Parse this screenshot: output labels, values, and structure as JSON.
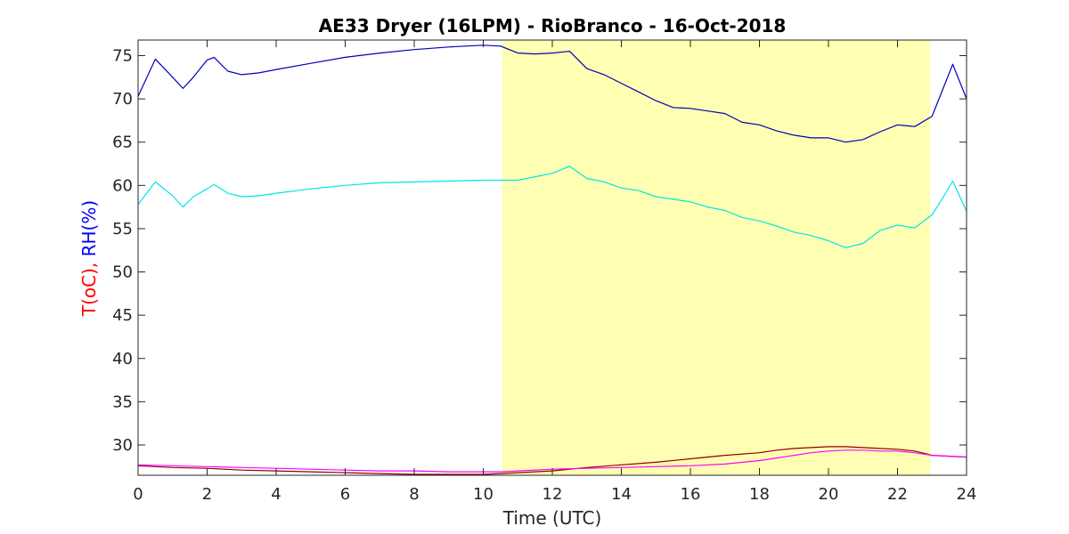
{
  "chart_data": {
    "type": "line",
    "title": "AE33 Dryer (16LPM)  - RioBranco - 16-Oct-2018",
    "xlabel": "Time (UTC)",
    "ylabel_parts": [
      {
        "text": "T(oC),",
        "color": "#ff0000"
      },
      {
        "text": " RH(%)",
        "color": "#0000ff"
      }
    ],
    "xlim": [
      0,
      24
    ],
    "ylim": [
      26.5,
      76.8
    ],
    "xticks": [
      0,
      2,
      4,
      6,
      8,
      10,
      12,
      14,
      16,
      18,
      20,
      22,
      24
    ],
    "yticks": [
      30,
      35,
      40,
      45,
      50,
      55,
      60,
      65,
      70,
      75
    ],
    "shaded_region": {
      "x0": 10.55,
      "x1": 22.95,
      "color": "#ffffb3"
    },
    "grid": false,
    "series": [
      {
        "color": "#0000b4",
        "x": [
          0,
          0.5,
          1,
          1.3,
          1.6,
          2,
          2.2,
          2.6,
          3,
          3.5,
          4,
          5,
          6,
          7,
          8,
          9,
          10,
          10.5,
          11,
          11.5,
          12,
          12.5,
          13,
          13.5,
          14,
          14.5,
          15,
          15.5,
          16,
          16.5,
          17,
          17.5,
          18,
          18.5,
          19,
          19.5,
          20,
          20.5,
          21,
          21.5,
          22,
          22.5,
          23,
          23.3,
          23.6,
          24
        ],
        "y": [
          70.3,
          74.6,
          72.5,
          71.2,
          72.5,
          74.5,
          74.8,
          73.2,
          72.8,
          73,
          73.4,
          74.1,
          74.8,
          75.3,
          75.7,
          76,
          76.2,
          76.1,
          75.3,
          75.2,
          75.3,
          75.5,
          73.5,
          72.8,
          71.8,
          70.8,
          69.8,
          69,
          68.9,
          68.6,
          68.3,
          67.3,
          67,
          66.3,
          65.8,
          65.5,
          65.5,
          65,
          65.3,
          66.2,
          67,
          66.8,
          68,
          71,
          74,
          70
        ]
      },
      {
        "color": "#00e5e5",
        "x": [
          0,
          0.5,
          1,
          1.3,
          1.6,
          2,
          2.2,
          2.6,
          3,
          3.5,
          4,
          5,
          6,
          7,
          8,
          9,
          10,
          10.5,
          11,
          11.5,
          12,
          12.5,
          13,
          13.5,
          14,
          14.5,
          15,
          15.5,
          16,
          16.5,
          17,
          17.5,
          18,
          18.5,
          19,
          19.5,
          20,
          20.5,
          21,
          21.5,
          22,
          22.5,
          23,
          23.3,
          23.6,
          24
        ],
        "y": [
          57.8,
          60.4,
          58.8,
          57.5,
          58.7,
          59.6,
          60.1,
          59.1,
          58.7,
          58.8,
          59.1,
          59.6,
          60,
          60.3,
          60.4,
          60.5,
          60.6,
          60.6,
          60.6,
          61,
          61.4,
          62.2,
          60.8,
          60.4,
          59.7,
          59.4,
          58.7,
          58.4,
          58.1,
          57.5,
          57.1,
          56.3,
          55.9,
          55.3,
          54.6,
          54.2,
          53.6,
          52.8,
          53.3,
          54.8,
          55.4,
          55.1,
          56.6,
          58.5,
          60.5,
          57
        ]
      },
      {
        "color": "#8b0000",
        "x": [
          0,
          1,
          2,
          3,
          4,
          5,
          6,
          7,
          8,
          9,
          10,
          10.5,
          11,
          12,
          13,
          14,
          15,
          16,
          17,
          18,
          18.5,
          19,
          19.5,
          20,
          20.5,
          21,
          21.5,
          22,
          22.5,
          23,
          23.5,
          24
        ],
        "y": [
          27.6,
          27.4,
          27.3,
          27.1,
          27,
          26.9,
          26.8,
          26.7,
          26.6,
          26.6,
          26.6,
          26.7,
          26.8,
          27,
          27.4,
          27.7,
          28,
          28.4,
          28.8,
          29.1,
          29.4,
          29.6,
          29.7,
          29.8,
          29.8,
          29.7,
          29.6,
          29.5,
          29.3,
          28.8,
          28.7,
          28.6
        ]
      },
      {
        "color": "#ff00ff",
        "x": [
          0,
          1,
          2,
          3,
          4,
          5,
          6,
          7,
          8,
          9,
          10,
          10.5,
          11,
          12,
          13,
          14,
          15,
          16,
          17,
          18,
          18.5,
          19,
          19.5,
          20,
          20.5,
          21,
          21.5,
          22,
          22.5,
          23,
          23.5,
          24
        ],
        "y": [
          27.7,
          27.6,
          27.5,
          27.4,
          27.3,
          27.2,
          27.1,
          27.0,
          27.0,
          26.9,
          26.9,
          26.9,
          27.0,
          27.2,
          27.3,
          27.4,
          27.5,
          27.6,
          27.8,
          28.2,
          28.5,
          28.8,
          29.1,
          29.3,
          29.4,
          29.4,
          29.3,
          29.3,
          29.1,
          28.8,
          28.7,
          28.6
        ]
      }
    ]
  }
}
